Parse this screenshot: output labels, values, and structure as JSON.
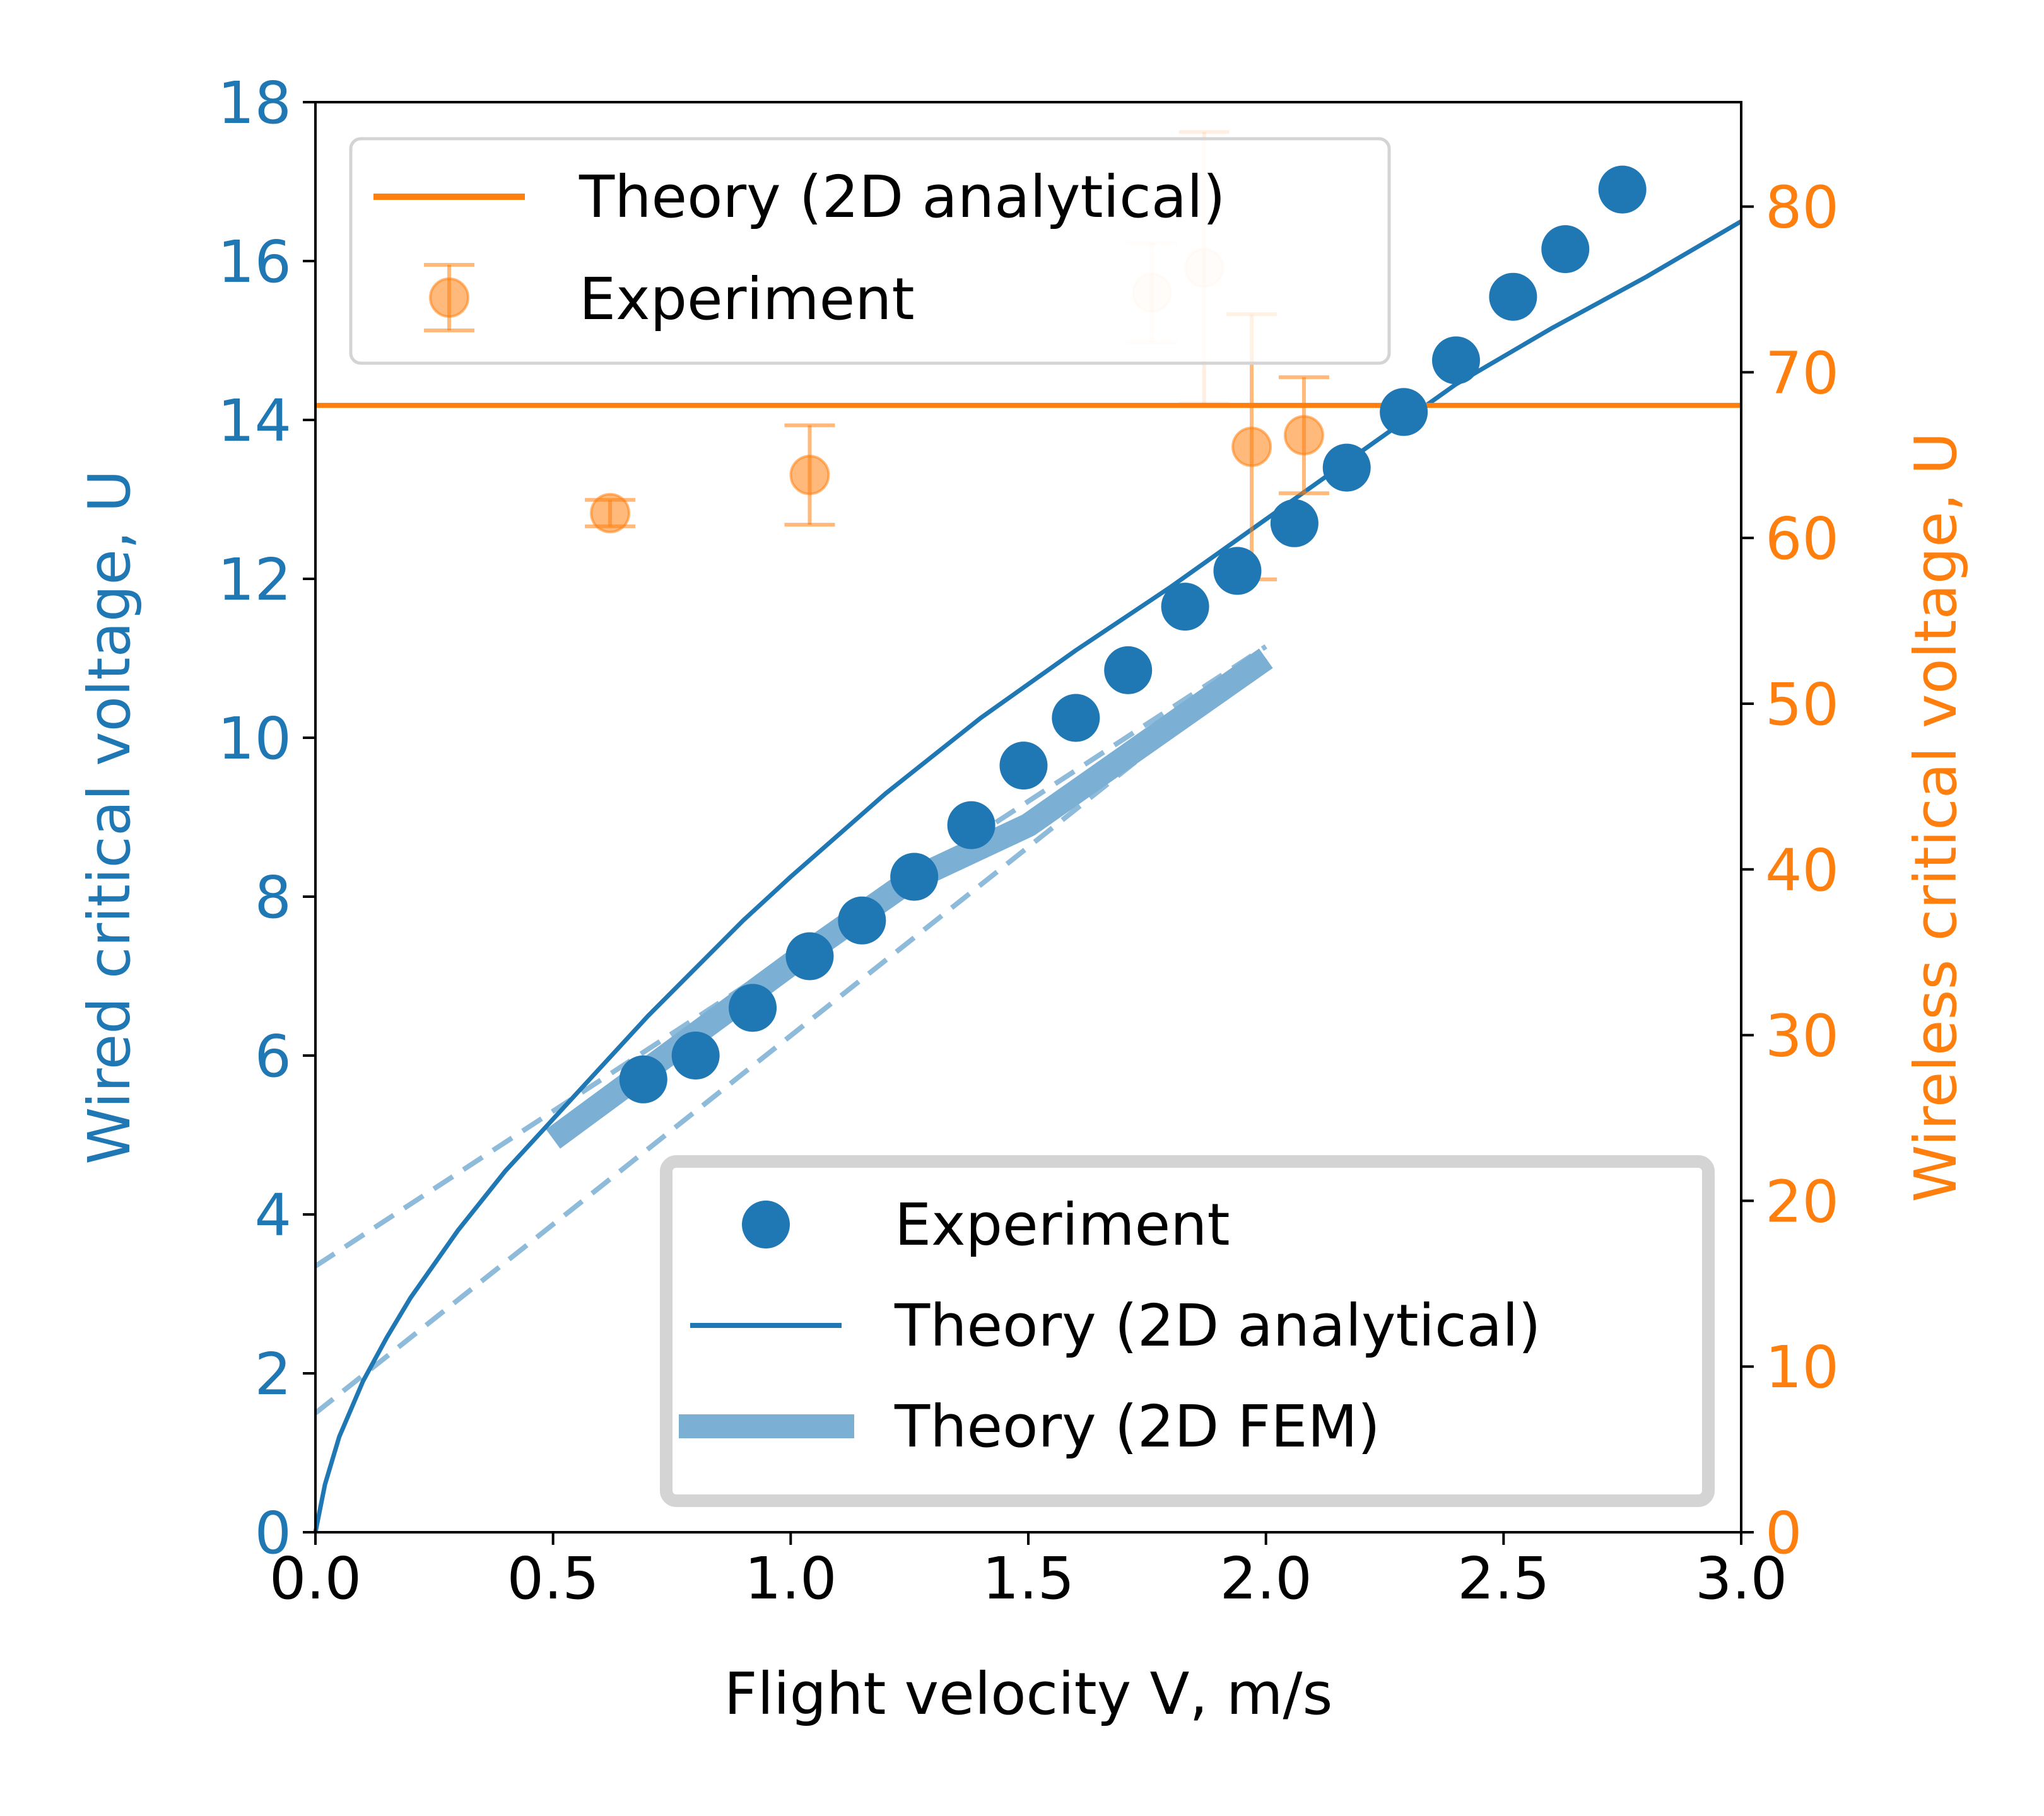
{
  "chart_data": {
    "type": "line",
    "xlabel": "Flight velocity V, m/s",
    "ylabel": "Wired critical voltage, U",
    "y2label": "Wireless critical voltage, U",
    "xlim": [
      0,
      3.0
    ],
    "ylim": [
      0,
      18
    ],
    "y2lim": [
      0,
      86.3
    ],
    "xticks": [
      "0.0",
      "0.5",
      "1.0",
      "1.5",
      "2.0",
      "2.5",
      "3.0"
    ],
    "yticks": [
      "0",
      "2",
      "4",
      "6",
      "8",
      "10",
      "12",
      "14",
      "16",
      "18"
    ],
    "y2ticks": [
      "0",
      "10",
      "20",
      "30",
      "40",
      "50",
      "60",
      "70",
      "80"
    ],
    "grid": false,
    "colors": {
      "wired": "#1f77b4",
      "wireless": "#ff7f0e",
      "fem": "#7bafd4",
      "legend_border": "#d4d4d4"
    },
    "legends": {
      "wireless": {
        "placement": "top-left",
        "entries": [
          "Theory (2D analytical)",
          "Experiment"
        ]
      },
      "wired": {
        "placement": "bottom-right",
        "entries": [
          "Experiment",
          "Theory (2D analytical)",
          "Theory (2D FEM)"
        ]
      }
    },
    "series": [
      {
        "name": "Experiment",
        "axis": "left",
        "kind": "scatter",
        "x": [
          0.69,
          0.8,
          0.92,
          1.04,
          1.15,
          1.26,
          1.38,
          1.49,
          1.6,
          1.71,
          1.83,
          1.94,
          2.06,
          2.17,
          2.29,
          2.4,
          2.52,
          2.63,
          2.75
        ],
        "y": [
          5.7,
          6.0,
          6.6,
          7.25,
          7.7,
          8.25,
          8.9,
          9.65,
          10.25,
          10.85,
          11.65,
          12.1,
          12.7,
          13.4,
          14.1,
          14.75,
          15.55,
          16.15,
          16.9
        ]
      },
      {
        "name": "Theory (2D analytical)",
        "axis": "left",
        "kind": "line",
        "x": [
          0,
          0.02,
          0.05,
          0.1,
          0.15,
          0.2,
          0.3,
          0.4,
          0.5,
          0.6,
          0.7,
          0.8,
          0.9,
          1.0,
          1.2,
          1.4,
          1.6,
          1.8,
          2.0,
          2.2,
          2.4,
          2.6,
          2.8,
          3.0
        ],
        "y": [
          0,
          0.6,
          1.2,
          1.9,
          2.45,
          2.95,
          3.8,
          4.55,
          5.2,
          5.85,
          6.5,
          7.1,
          7.7,
          8.25,
          9.3,
          10.25,
          11.1,
          11.9,
          12.75,
          13.6,
          14.45,
          15.15,
          15.8,
          16.5
        ]
      },
      {
        "name": "Theory (2D FEM)",
        "axis": "left",
        "kind": "band",
        "x": [
          0.5,
          0.75,
          1.0,
          1.25,
          1.5,
          1.75,
          2.0
        ],
        "y": [
          4.95,
          6.05,
          7.15,
          8.2,
          8.9,
          9.95,
          11.0
        ]
      },
      {
        "name": "",
        "axis": "left",
        "kind": "dashed",
        "x": [
          0.0,
          2.0
        ],
        "y": [
          3.35,
          11.15
        ]
      },
      {
        "name": "",
        "axis": "left",
        "kind": "dashed",
        "x": [
          0.0,
          2.0
        ],
        "y": [
          1.5,
          11.0
        ]
      },
      {
        "name": "Theory (2D analytical)",
        "axis": "right",
        "kind": "hline",
        "y": 68.0
      },
      {
        "name": "Experiment",
        "axis": "right",
        "kind": "errorbar",
        "x": [
          0.62,
          1.04,
          1.76,
          1.87,
          1.97,
          2.08
        ],
        "y": [
          61.5,
          63.8,
          74.8,
          76.3,
          65.5,
          66.2
        ],
        "yerr": [
          0.8,
          3.0,
          3.0,
          8.2,
          8.0,
          3.5
        ],
        "alpha": [
          0.55,
          0.55,
          0.12,
          0.12,
          0.55,
          0.55
        ]
      }
    ]
  }
}
